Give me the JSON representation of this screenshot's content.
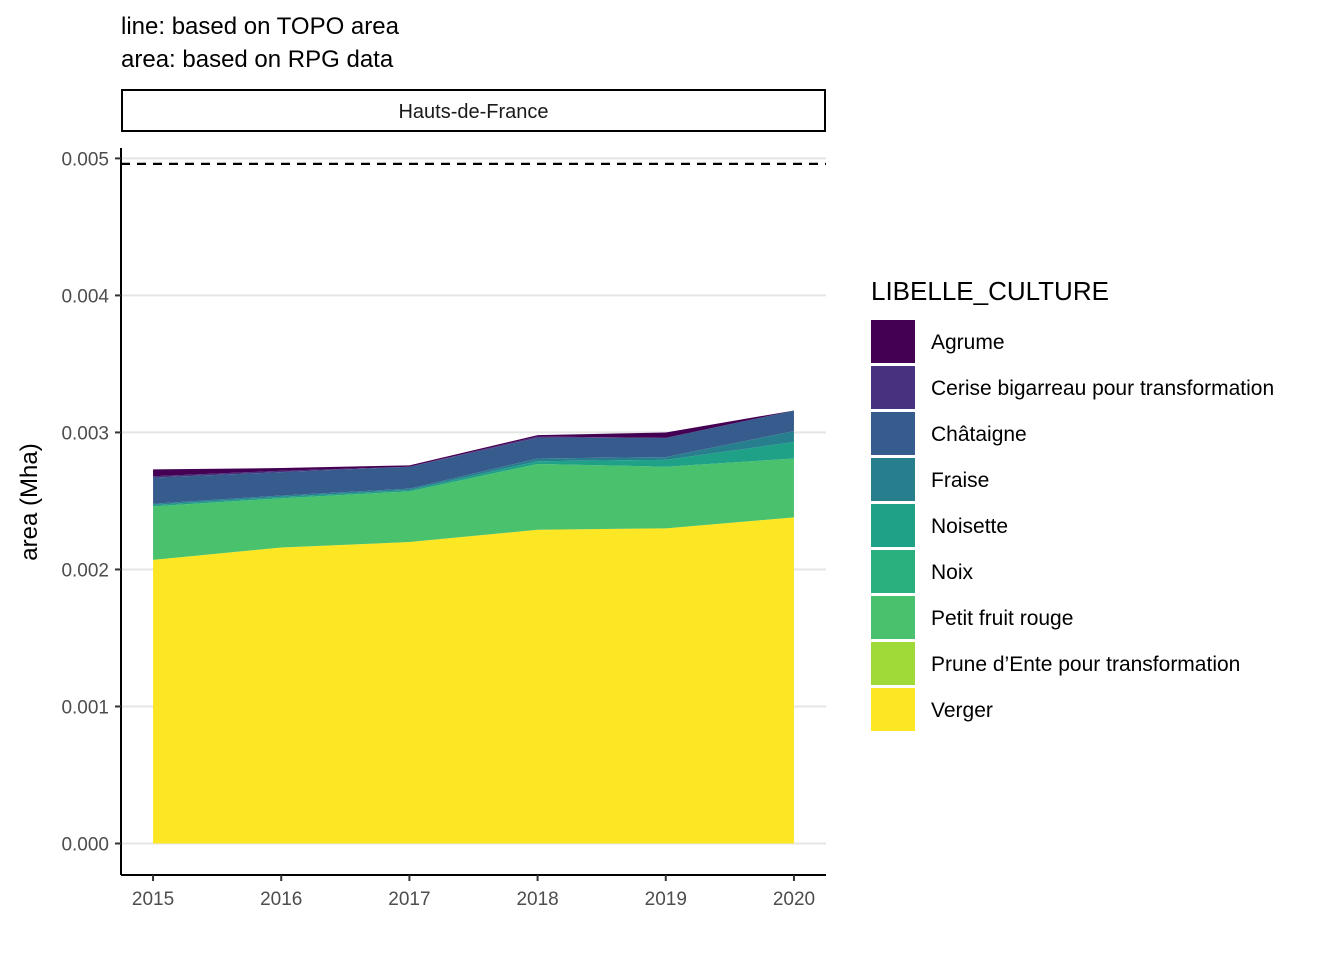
{
  "title_lines": [
    "line: based on TOPO area",
    "area: based on RPG data"
  ],
  "chart_data": {
    "type": "area",
    "stacked": true,
    "facet": "Hauts-de-France",
    "ylabel": "area (Mha)",
    "xlabel": "",
    "x": [
      2015,
      2016,
      2017,
      2018,
      2019,
      2020
    ],
    "xlim": [
      2014.75,
      2020.25
    ],
    "ylim": [
      -0.00023,
      0.0052
    ],
    "yticks": [
      0.0,
      0.001,
      0.002,
      0.003,
      0.004,
      0.005
    ],
    "ytick_labels": [
      "0.000",
      "0.001",
      "0.002",
      "0.003",
      "0.004",
      "0.005"
    ],
    "xtick_labels": [
      "2015",
      "2016",
      "2017",
      "2018",
      "2019",
      "2020"
    ],
    "grid": "horizontal",
    "legend_title": "LIBELLE_CULTURE",
    "legend_position": "right",
    "reference_line": {
      "style": "dashed",
      "value": 0.00496
    },
    "series": [
      {
        "name": "Verger",
        "color": "#FDE725",
        "values": [
          0.00207,
          0.00216,
          0.0022,
          0.00229,
          0.0023,
          0.00238
        ]
      },
      {
        "name": "Prune d’Ente pour transformation",
        "color": "#A0DA39",
        "values": [
          0,
          0,
          0,
          0,
          0,
          0
        ]
      },
      {
        "name": "Petit fruit rouge",
        "color": "#4AC16D",
        "values": [
          0.00039,
          0.00036,
          0.00037,
          0.00048,
          0.00045,
          0.00043
        ]
      },
      {
        "name": "Noix",
        "color": "#1FA187",
        "values": [
          1e-05,
          1e-05,
          1e-05,
          2e-05,
          5e-05,
          0.00012
        ]
      },
      {
        "name": "Noisette",
        "color": "#277F8E",
        "values": [
          1e-05,
          1e-05,
          1e-05,
          2e-05,
          2e-05,
          8e-05
        ]
      },
      {
        "name": "Fraise",
        "color": "#365C8D",
        "values": [
          0.00019,
          0.00017,
          0.00016,
          0.00015,
          0.00014,
          0.00015
        ]
      },
      {
        "name": "Châtaigne",
        "color": "#46327E",
        "values": [
          1e-05,
          1e-05,
          0,
          1e-05,
          0,
          0
        ]
      },
      {
        "name": "Cerise bigarreau pour transformation",
        "color": "#46327E",
        "values": [
          0,
          0,
          0,
          0,
          0,
          0
        ]
      },
      {
        "name": "Agrume",
        "color": "#440154",
        "values": [
          5e-05,
          2e-05,
          1e-05,
          1e-05,
          4e-05,
          0
        ]
      }
    ],
    "legend_order": [
      "Agrume",
      "Cerise bigarreau pour transformation",
      "Châtaigne",
      "Fraise",
      "Noisette",
      "Noix",
      "Petit fruit rouge",
      "Prune d’Ente pour transformation",
      "Verger"
    ],
    "legend_colors": [
      "#440154",
      "#46327E",
      "#365C8D",
      "#277F8E",
      "#1FA187",
      "#2AB07F",
      "#4AC16D",
      "#A0DA39",
      "#FDE725"
    ]
  }
}
